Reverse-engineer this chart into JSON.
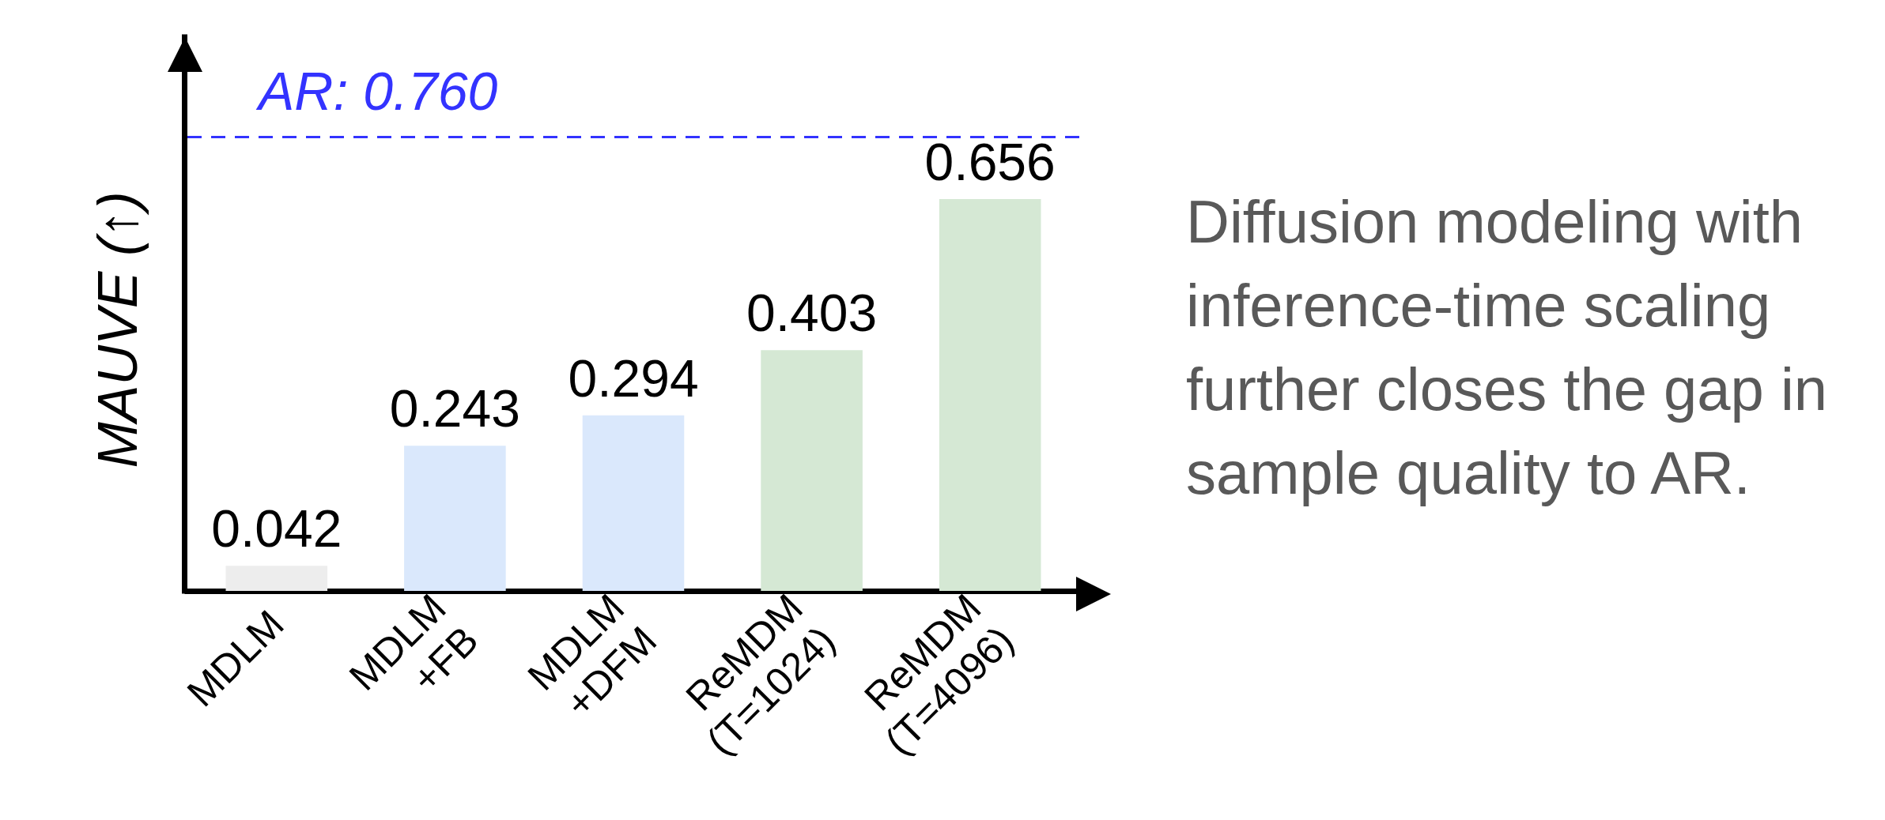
{
  "chart_data": {
    "type": "bar",
    "ylabel": "MAUVE (↑)",
    "categories": [
      "MDLM",
      "MDLM\n+FB",
      "MDLM\n+DFM",
      "ReMDM\n(T=1024)",
      "ReMDM\n(T=4096)"
    ],
    "values": [
      0.042,
      0.243,
      0.294,
      0.403,
      0.656
    ],
    "colors": [
      "#ededed",
      "#dae8fc",
      "#dae8fc",
      "#d5e8d4",
      "#d5e8d4"
    ],
    "data_labels": true,
    "ref_lines": [
      {
        "axis": "y",
        "value": 0.76,
        "label": "AR: 0.760",
        "color": "#3333ff",
        "line_style": "dashed"
      }
    ],
    "annotations": [
      "Diffusion modeling with inference-time scaling further closes the gap in sample quality to AR."
    ],
    "tick_labels": "x",
    "grid": false
  }
}
